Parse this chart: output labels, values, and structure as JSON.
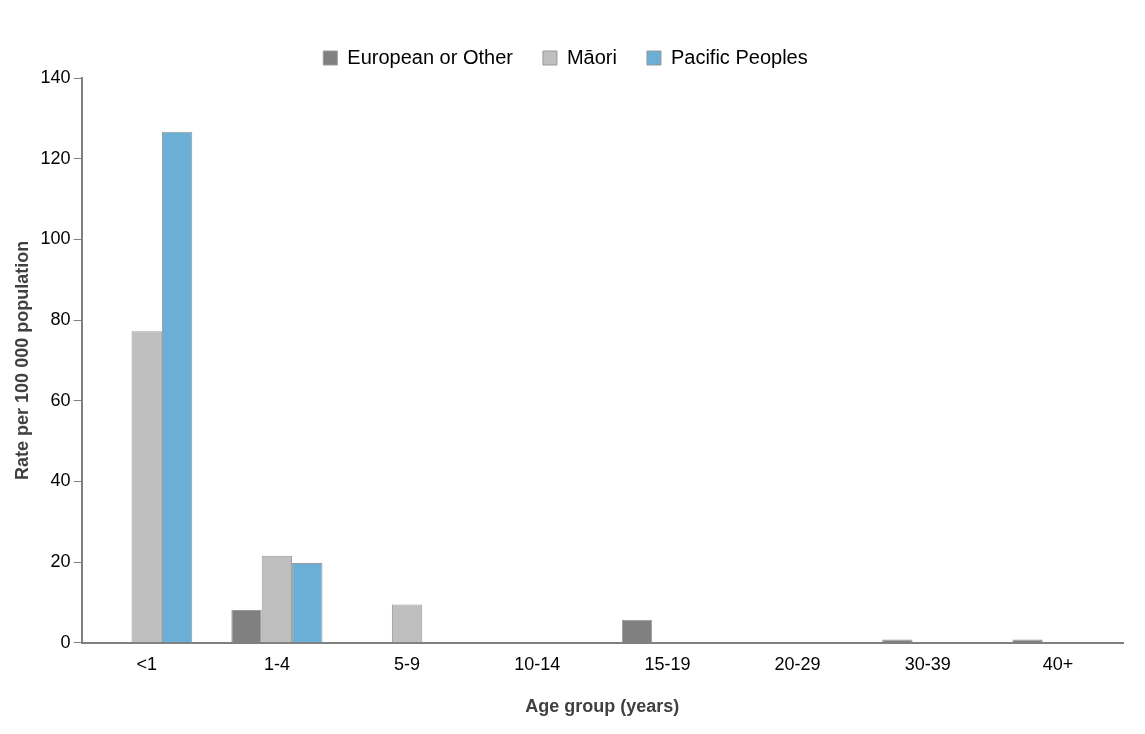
{
  "chart_data": {
    "type": "bar",
    "xlabel": "Age group (years)",
    "ylabel": "Rate per 100 000 population",
    "categories": [
      "<1",
      "1-4",
      "5-9",
      "10-14",
      "15-19",
      "20-29",
      "30-39",
      "40+"
    ],
    "series": [
      {
        "name": "European or Other",
        "color": "#808080",
        "values": [
          0,
          8.1,
          0,
          0,
          5.7,
          0,
          0.8,
          0.8
        ]
      },
      {
        "name": "Māori",
        "color": "#bfbfbf",
        "values": [
          77.2,
          21.6,
          9.5,
          0,
          0,
          0,
          0,
          0
        ]
      },
      {
        "name": "Pacific Peoples",
        "color": "#6baed6",
        "values": [
          126.7,
          19.8,
          0,
          0,
          0,
          0,
          0,
          0
        ]
      }
    ],
    "ylim": [
      0,
      140
    ],
    "yticks": [
      0,
      20,
      40,
      60,
      80,
      100,
      120,
      140
    ],
    "grid": false,
    "legend": "top"
  }
}
